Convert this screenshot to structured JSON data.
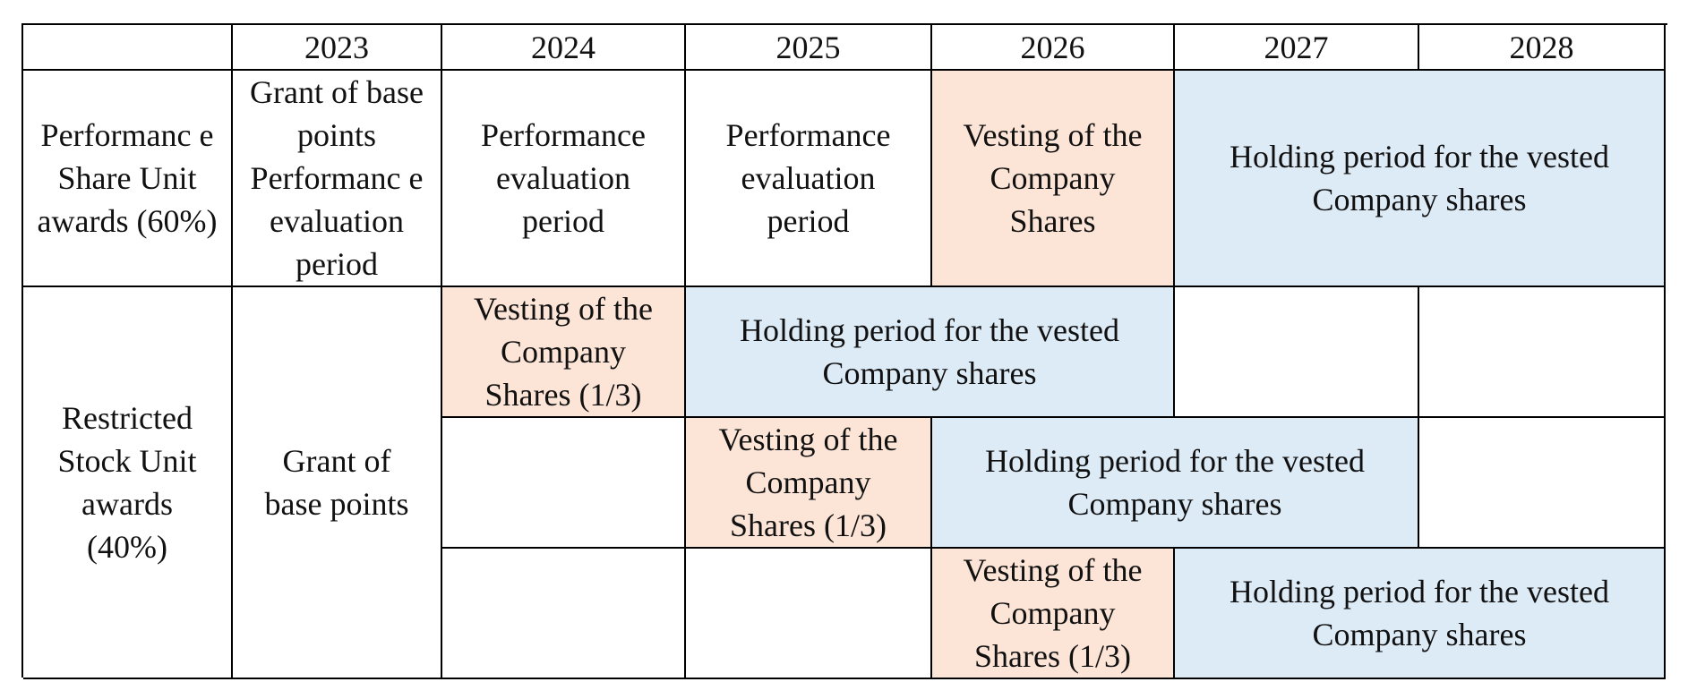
{
  "header": {
    "corner": "",
    "years": [
      "2023",
      "2024",
      "2025",
      "2026",
      "2027",
      "2028"
    ]
  },
  "psu": {
    "label": "Performanc e Share Unit awards (60%)",
    "grant": "Grant of base points Performanc e evaluation period",
    "eval_2024": "Performance evaluation period",
    "eval_2025": "Performance evaluation period",
    "vesting": "Vesting of the Company Shares",
    "holding": "Holding period for the vested Company shares"
  },
  "rsu": {
    "label": "Restricted Stock Unit awards (40%)",
    "grant": "Grant of base points",
    "tranche1": {
      "vesting": "Vesting of the Company Shares (1/3)",
      "holding": "Holding period for the vested Company shares"
    },
    "tranche2": {
      "vesting": "Vesting of the Company Shares (1/3)",
      "holding": "Holding period for the vested Company shares"
    },
    "tranche3": {
      "vesting": "Vesting of the Company Shares (1/3)",
      "holding": "Holding period for the vested Company shares"
    }
  },
  "colors": {
    "vesting_fill": "#fce4d6",
    "holding_fill": "#ddebf7",
    "border": "#000000"
  }
}
